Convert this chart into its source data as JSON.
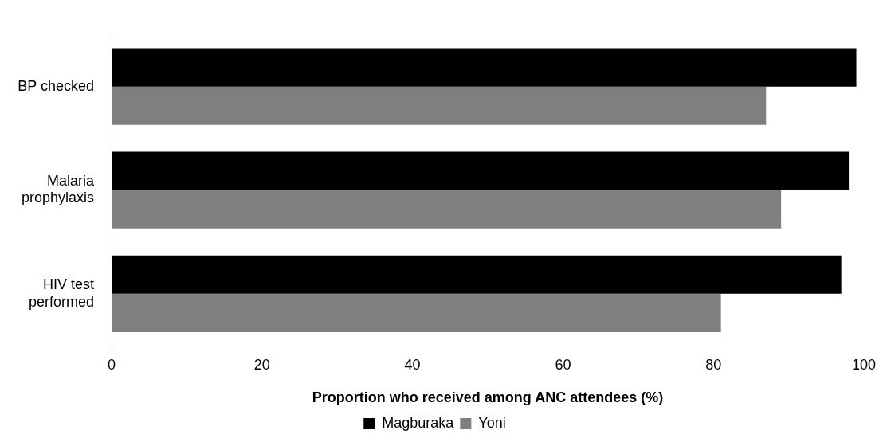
{
  "chart_data": {
    "type": "bar",
    "orientation": "horizontal",
    "categories": [
      "BP checked",
      "Malaria prophylaxis",
      "HIV test performed"
    ],
    "series": [
      {
        "name": "Magburaka",
        "color": "#000000",
        "values": [
          99,
          98,
          97
        ]
      },
      {
        "name": "Yoni",
        "color": "#7f7f7f",
        "values": [
          87,
          89,
          81
        ]
      }
    ],
    "xlabel": "Proportion who received among ANC attendees (%)",
    "xlim": [
      0,
      100
    ],
    "xticks": [
      0,
      20,
      40,
      60,
      80,
      100
    ],
    "grid": false,
    "legend": "bottom"
  }
}
